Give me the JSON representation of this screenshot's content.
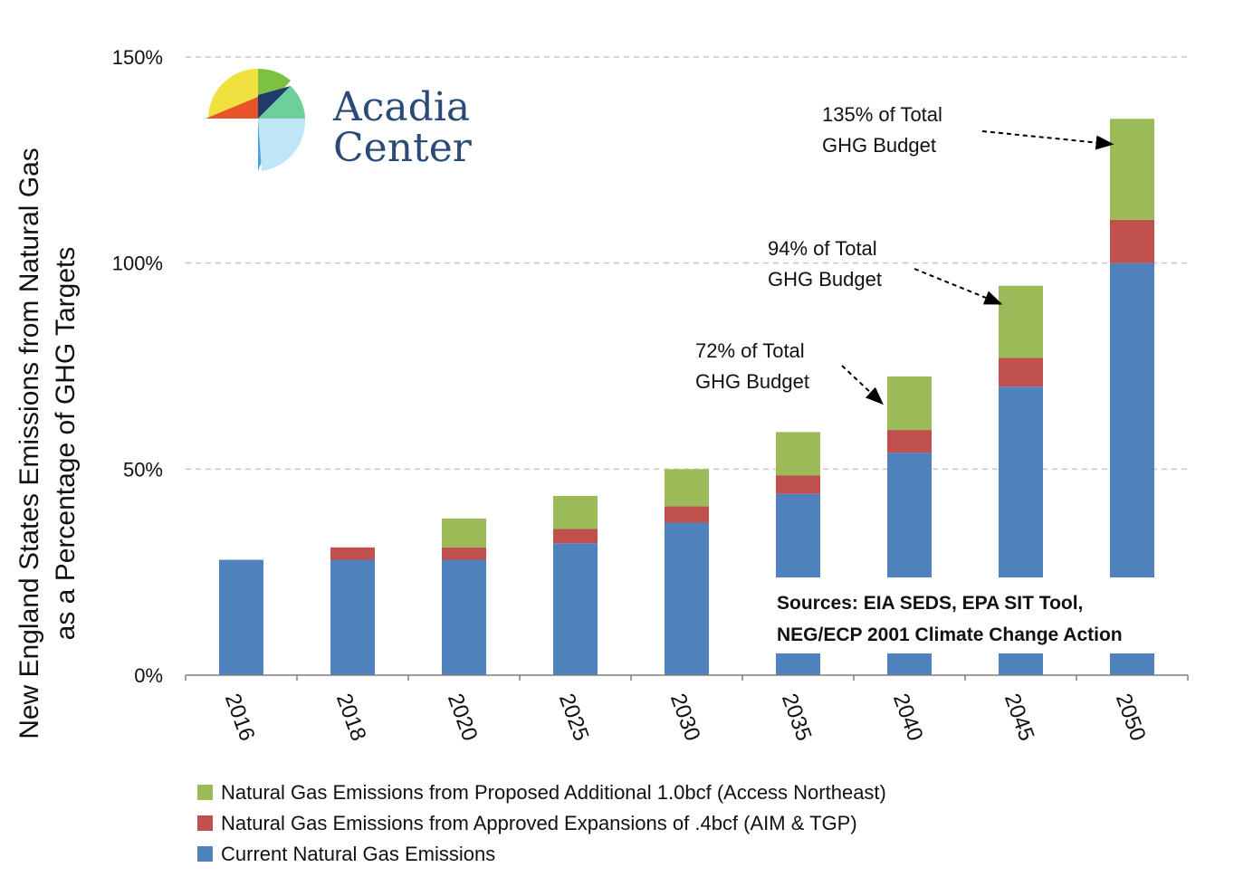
{
  "chart_data": {
    "type": "bar",
    "stacked": true,
    "categories": [
      "2016",
      "2018",
      "2020",
      "2025",
      "2030",
      "2035",
      "2040",
      "2045",
      "2050"
    ],
    "ylabel_lines": [
      "New England States Emissions from Natural Gas",
      "as a Percentage of GHG Targets"
    ],
    "ylim": [
      0,
      150
    ],
    "yticks": [
      0,
      50,
      100,
      150
    ],
    "ytick_labels": [
      "0%",
      "50%",
      "100%",
      "150%"
    ],
    "grid": "horizontal dashed",
    "series": [
      {
        "name": "Current Natural Gas Emissions",
        "color": "#4f81bd",
        "values": [
          28,
          28,
          28,
          32,
          37,
          44,
          54,
          70,
          100
        ]
      },
      {
        "name": "Natural Gas Emissions from Approved Expansions of .4bcf (AIM & TGP)",
        "color": "#c0504d",
        "values": [
          0,
          3,
          3,
          3.5,
          4,
          4.5,
          5.5,
          7,
          10.5
        ]
      },
      {
        "name": "Natural Gas Emissions from Proposed Additional 1.0bcf (Access Northeast)",
        "color": "#9bbb59",
        "values": [
          0,
          0,
          7,
          8,
          9,
          10.5,
          13,
          17.5,
          24.5
        ]
      }
    ],
    "legend_order": [
      2,
      1,
      0
    ],
    "legend_position": "bottom",
    "annotations": [
      {
        "category": "2040",
        "lines": [
          "72% of Total",
          "GHG Budget"
        ]
      },
      {
        "category": "2045",
        "lines": [
          "94% of Total",
          "GHG Budget"
        ]
      },
      {
        "category": "2050",
        "lines": [
          "135% of Total",
          "GHG Budget"
        ]
      }
    ],
    "source_lines": [
      "Sources: EIA SEDS,  EPA SIT Tool,",
      "NEG/ECP 2001 Climate Change Action"
    ]
  },
  "logo": {
    "name_lines": [
      "Acadia",
      "Center"
    ],
    "colors": [
      "#f0e040",
      "#7cc142",
      "#e8542a",
      "#1f3b6e",
      "#6fcf9a",
      "#4aa3df",
      "#bfe6f7"
    ]
  }
}
